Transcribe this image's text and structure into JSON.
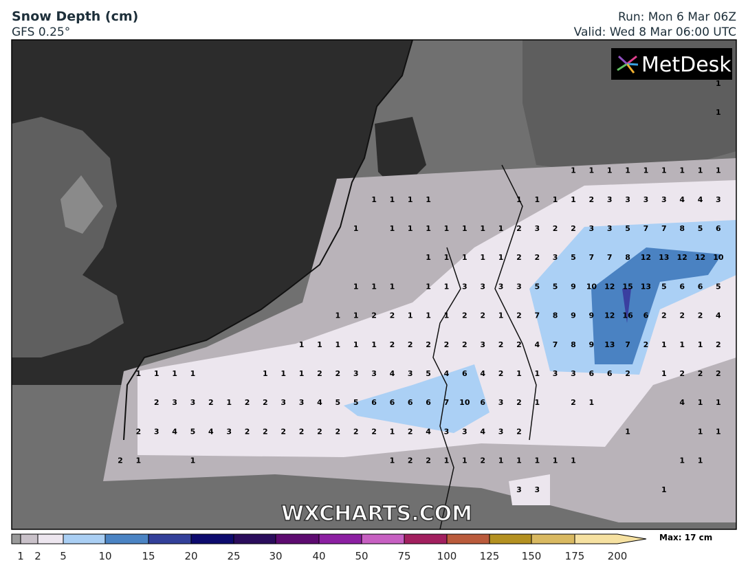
{
  "header": {
    "title": "Snow Depth (cm)",
    "model": "GFS 0.25°",
    "run": "Run: Mon 6 Mar 06Z",
    "valid": "Valid: Wed 8 Mar 06:00 UTC"
  },
  "logo": "MetDesk",
  "watermark": "WXCHARTS.COM",
  "legend": {
    "labels": [
      "1",
      "2",
      "5",
      "10",
      "15",
      "20",
      "25",
      "30",
      "40",
      "50",
      "75",
      "100",
      "125",
      "150",
      "175",
      "200"
    ],
    "colors": [
      "#9a9a9a",
      "#c9c1c9",
      "#ede6ef",
      "#aacff4",
      "#4b84c4",
      "#33409a",
      "#0d0b6e",
      "#2b0d5c",
      "#5d0b70",
      "#8c20a2",
      "#c760c2",
      "#a2205f",
      "#ba5b3c",
      "#b49121",
      "#d9b961",
      "#f6e1a1"
    ],
    "max": "Max: 17 cm"
  },
  "grid": {
    "rows": [
      [
        null,
        null,
        null,
        null,
        null,
        null,
        null,
        null,
        null,
        null,
        null,
        null,
        null,
        null,
        null,
        null,
        null,
        null,
        null,
        null,
        null,
        null,
        null,
        null,
        null,
        null,
        null,
        null,
        null,
        null,
        null,
        null,
        null,
        "1"
      ],
      [
        null,
        null,
        null,
        null,
        null,
        null,
        null,
        null,
        null,
        null,
        null,
        null,
        null,
        null,
        null,
        null,
        null,
        null,
        null,
        null,
        null,
        null,
        null,
        null,
        null,
        null,
        null,
        null,
        null,
        null,
        null,
        null,
        null,
        "1"
      ],
      [
        null,
        null,
        null,
        null,
        null,
        null,
        null,
        null,
        null,
        null,
        null,
        null,
        null,
        null,
        null,
        null,
        null,
        null,
        null,
        null,
        null,
        null,
        null,
        null,
        null,
        null,
        null,
        null,
        null,
        null,
        null,
        null,
        null,
        null
      ],
      [
        null,
        null,
        null,
        null,
        null,
        null,
        null,
        null,
        null,
        null,
        null,
        null,
        null,
        null,
        null,
        null,
        null,
        null,
        null,
        null,
        null,
        null,
        null,
        null,
        null,
        "1",
        "1",
        "1",
        "1",
        "1",
        "1",
        "1",
        "1",
        "1"
      ],
      [
        null,
        null,
        null,
        null,
        null,
        null,
        null,
        null,
        null,
        null,
        null,
        null,
        null,
        null,
        "1",
        "1",
        "1",
        "1",
        null,
        null,
        null,
        null,
        "1",
        "1",
        "1",
        "1",
        "2",
        "3",
        "3",
        "3",
        "3",
        "4",
        "4",
        "3"
      ],
      [
        null,
        null,
        null,
        null,
        null,
        null,
        null,
        null,
        null,
        null,
        null,
        null,
        null,
        "1",
        null,
        "1",
        "1",
        "1",
        "1",
        "1",
        "1",
        "1",
        "2",
        "3",
        "2",
        "2",
        "3",
        "3",
        "5",
        "7",
        "7",
        "8",
        "5",
        "6"
      ],
      [
        null,
        null,
        null,
        null,
        null,
        null,
        null,
        null,
        null,
        null,
        null,
        null,
        null,
        null,
        null,
        null,
        null,
        "1",
        "1",
        "1",
        "1",
        "1",
        "2",
        "2",
        "3",
        "5",
        "7",
        "7",
        "8",
        "12",
        "13",
        "12",
        "12",
        "10"
      ],
      [
        null,
        null,
        null,
        null,
        null,
        null,
        null,
        null,
        null,
        null,
        null,
        null,
        null,
        "1",
        "1",
        "1",
        null,
        "1",
        "1",
        "3",
        "3",
        "3",
        "3",
        "5",
        "5",
        "9",
        "10",
        "12",
        "15",
        "13",
        "5",
        "6",
        "6",
        "5"
      ],
      [
        null,
        null,
        null,
        null,
        null,
        null,
        null,
        null,
        null,
        null,
        null,
        null,
        "1",
        "1",
        "2",
        "2",
        "1",
        "1",
        "1",
        "2",
        "2",
        "1",
        "2",
        "7",
        "8",
        "9",
        "9",
        "12",
        "16",
        "6",
        "2",
        "2",
        "2",
        "4"
      ],
      [
        null,
        null,
        null,
        null,
        null,
        null,
        null,
        null,
        null,
        null,
        "1",
        "1",
        "1",
        "1",
        "1",
        "2",
        "2",
        "2",
        "2",
        "2",
        "3",
        "2",
        "2",
        "4",
        "7",
        "8",
        "9",
        "13",
        "7",
        "2",
        "1",
        "1",
        "1",
        "2"
      ],
      [
        null,
        "1",
        "1",
        "1",
        "1",
        null,
        null,
        null,
        "1",
        "1",
        "1",
        "2",
        "2",
        "3",
        "3",
        "4",
        "3",
        "5",
        "4",
        "6",
        "4",
        "2",
        "1",
        "1",
        "3",
        "3",
        "6",
        "6",
        "2",
        null,
        "1",
        "2",
        "2",
        "2"
      ],
      [
        null,
        null,
        "2",
        "3",
        "3",
        "2",
        "1",
        "2",
        "2",
        "3",
        "3",
        "4",
        "5",
        "5",
        "6",
        "6",
        "6",
        "6",
        "7",
        "10",
        "6",
        "3",
        "2",
        "1",
        null,
        "2",
        "1",
        null,
        null,
        null,
        null,
        "4",
        "1",
        "1"
      ],
      [
        null,
        "2",
        "3",
        "4",
        "5",
        "4",
        "3",
        "2",
        "2",
        "2",
        "2",
        "2",
        "2",
        "2",
        "2",
        "1",
        "2",
        "4",
        "3",
        "3",
        "4",
        "3",
        "2",
        null,
        null,
        null,
        null,
        null,
        "1",
        null,
        null,
        null,
        "1",
        "1"
      ],
      [
        "2",
        "1",
        null,
        null,
        "1",
        null,
        null,
        null,
        null,
        null,
        null,
        null,
        null,
        null,
        null,
        "1",
        "2",
        "2",
        "1",
        "1",
        "2",
        "1",
        "1",
        "1",
        "1",
        "1",
        null,
        null,
        null,
        null,
        null,
        "1",
        "1",
        null
      ],
      [
        null,
        null,
        null,
        null,
        null,
        null,
        null,
        null,
        null,
        null,
        null,
        null,
        null,
        null,
        null,
        null,
        null,
        null,
        null,
        null,
        null,
        null,
        "3",
        "3",
        null,
        null,
        null,
        null,
        null,
        null,
        "1",
        null,
        null,
        null
      ]
    ]
  }
}
